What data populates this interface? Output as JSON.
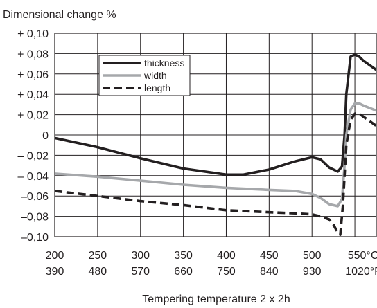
{
  "chart_data": {
    "type": "line",
    "ylabel": "Dimensional change %",
    "xlabel": "Tempering temperature  2 x 2h",
    "ylim": [
      -0.1,
      0.1
    ],
    "xlim": [
      200,
      575
    ],
    "y_ticks": [
      0.1,
      0.08,
      0.06,
      0.04,
      0.02,
      0,
      -0.02,
      -0.04,
      -0.06,
      -0.08,
      -0.1
    ],
    "y_tick_labels": [
      "+ 0,10",
      "+ 0,08",
      "+ 0,06",
      "+ 0,04",
      "+ 0,02",
      "0",
      "– 0,02",
      "– 0,04",
      "–0,06",
      "–0,08",
      "–0,10"
    ],
    "x_ticks": [
      200,
      250,
      300,
      350,
      400,
      450,
      500,
      550
    ],
    "x_tick_labels_c": [
      "200",
      "250",
      "300",
      "350",
      "400",
      "450",
      "500",
      "550°C"
    ],
    "x_tick_labels_f": [
      "390",
      "480",
      "570",
      "660",
      "750",
      "840",
      "930",
      "1020°F"
    ],
    "grid": true,
    "legend_position": "top-left",
    "series": [
      {
        "name": "thickness",
        "color": "#231f20",
        "style": "solid",
        "x": [
          200,
          250,
          300,
          350,
          400,
          420,
          450,
          480,
          500,
          510,
          520,
          530,
          535,
          538,
          540,
          545,
          550,
          555,
          560,
          575
        ],
        "y": [
          -0.003,
          -0.012,
          -0.023,
          -0.033,
          -0.039,
          -0.039,
          -0.034,
          -0.026,
          -0.022,
          -0.024,
          -0.032,
          -0.036,
          -0.031,
          0.0,
          0.04,
          0.077,
          0.079,
          0.077,
          0.073,
          0.064
        ]
      },
      {
        "name": "width",
        "color": "#a6a8ab",
        "style": "solid",
        "x": [
          200,
          250,
          300,
          350,
          400,
          450,
          480,
          500,
          510,
          520,
          530,
          535,
          538,
          540,
          545,
          550,
          555,
          560,
          575
        ],
        "y": [
          -0.038,
          -0.041,
          -0.045,
          -0.049,
          -0.052,
          -0.054,
          -0.055,
          -0.058,
          -0.062,
          -0.068,
          -0.07,
          -0.063,
          -0.03,
          0.0,
          0.025,
          0.031,
          0.031,
          0.029,
          0.024
        ]
      },
      {
        "name": "length",
        "color": "#231f20",
        "style": "dashed",
        "x": [
          200,
          250,
          300,
          350,
          400,
          450,
          480,
          500,
          510,
          520,
          525,
          530,
          533,
          536,
          538,
          540,
          545,
          550,
          555,
          560,
          575
        ],
        "y": [
          -0.055,
          -0.06,
          -0.065,
          -0.069,
          -0.074,
          -0.076,
          -0.077,
          -0.078,
          -0.08,
          -0.083,
          -0.088,
          -0.096,
          -0.098,
          -0.07,
          -0.04,
          -0.01,
          0.015,
          0.021,
          0.021,
          0.018,
          0.009
        ]
      }
    ]
  }
}
